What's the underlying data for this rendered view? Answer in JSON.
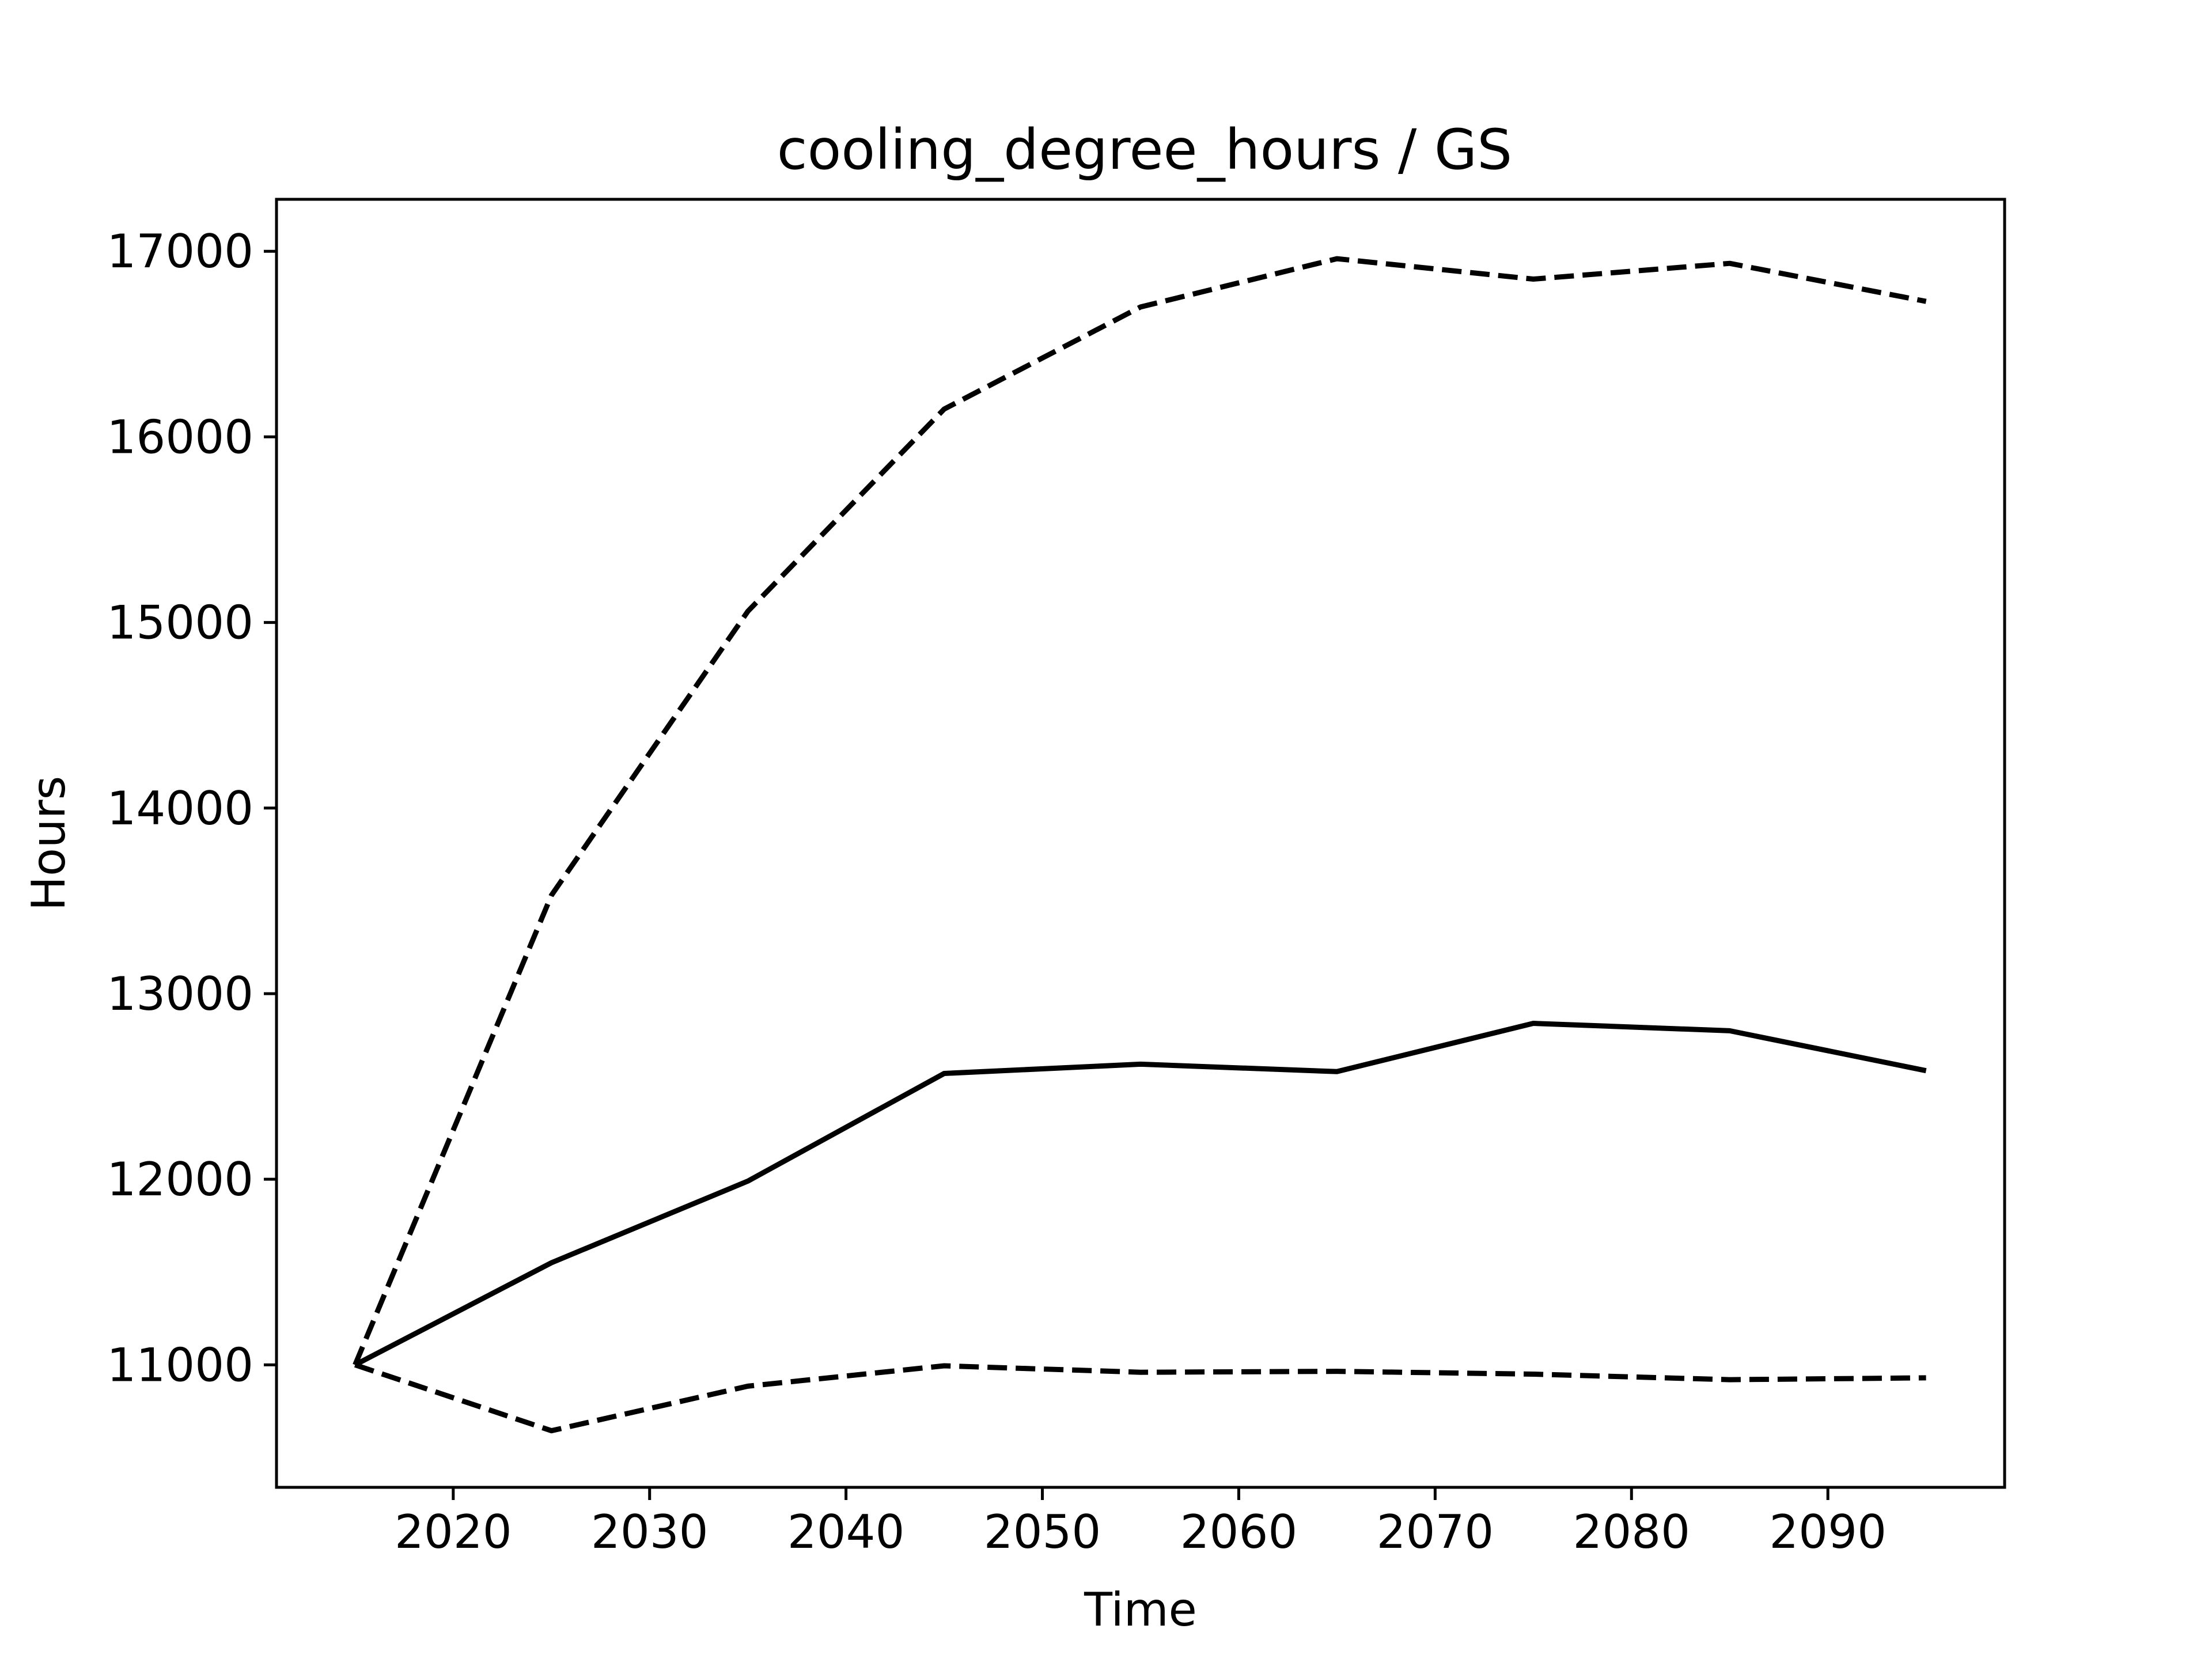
{
  "chart_data": {
    "type": "line",
    "title": "cooling_degree_hours / GS",
    "xlabel": "Time",
    "ylabel": "Hours",
    "xlim": [
      2011,
      2099
    ],
    "ylim": [
      10340,
      17280
    ],
    "xticks": [
      2020,
      2030,
      2040,
      2050,
      2060,
      2070,
      2080,
      2090
    ],
    "yticks": [
      11000,
      12000,
      13000,
      14000,
      15000,
      16000,
      17000
    ],
    "grid": false,
    "x": [
      2015,
      2025,
      2035,
      2045,
      2055,
      2065,
      2075,
      2085,
      2095
    ],
    "series": [
      {
        "style": "dashed",
        "color": "#000000",
        "values": [
          11000,
          13530,
          15060,
          16150,
          16700,
          16960,
          16850,
          16935,
          16730
        ]
      },
      {
        "style": "solid",
        "color": "#000000",
        "values": [
          11000,
          11550,
          11990,
          12570,
          12620,
          12580,
          12840,
          12800,
          12585
        ]
      },
      {
        "style": "dashed",
        "color": "#000000",
        "values": [
          11000,
          10645,
          10885,
          10995,
          10960,
          10965,
          10950,
          10920,
          10930
        ]
      }
    ]
  }
}
